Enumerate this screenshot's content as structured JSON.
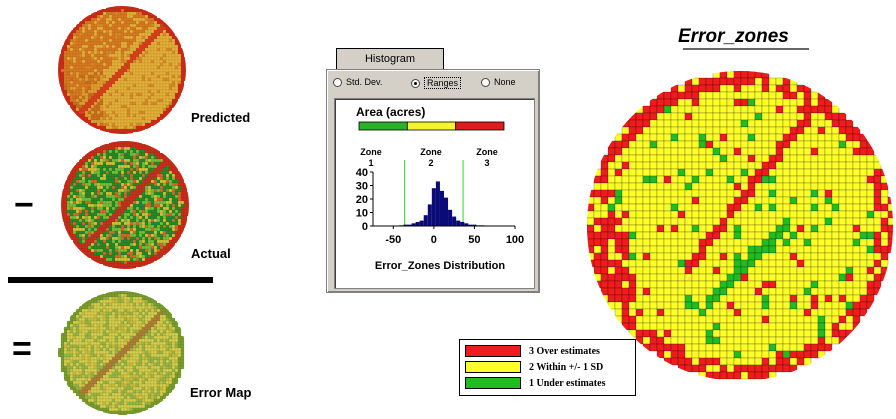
{
  "maps": {
    "predicted_label": "Predicted",
    "actual_label": "Actual",
    "error_map_label": "Error Map",
    "minus_sign": "−",
    "equals_sign": "="
  },
  "histogram": {
    "tab_label": "Histogram",
    "options": [
      "Std. Dev.",
      "Ranges",
      "None"
    ],
    "selected_option": "Ranges",
    "area_title": "Area (acres)",
    "zone_word": "Zone",
    "zone_numbers": [
      "1",
      "2",
      "3"
    ],
    "zone_colors": [
      "#2cb02c",
      "#f5f52a",
      "#e21c1c"
    ],
    "distribution_label": "Error_Zones Distribution",
    "chart_data": {
      "type": "bar",
      "title": "Area (acres)",
      "xlabel": "Error_Zones Distribution",
      "ylabel": "",
      "ylim": [
        0,
        40
      ],
      "xlim": [
        -75,
        100
      ],
      "x_ticks": [
        "-50",
        "0",
        "50",
        "100"
      ],
      "y_ticks": [
        "40",
        "30",
        "20",
        "10",
        "0"
      ],
      "x": [
        -40,
        -35,
        -30,
        -25,
        -20,
        -15,
        -10,
        -5,
        0,
        5,
        10,
        15,
        20,
        25,
        30,
        35,
        40,
        45,
        50,
        55,
        60
      ],
      "values": [
        0.5,
        1,
        1,
        2,
        3,
        4,
        8,
        16,
        28,
        33,
        26,
        21,
        12,
        7,
        4,
        3,
        2,
        1,
        1,
        0.5,
        0.5
      ],
      "thresholds": [
        -36,
        36
      ],
      "bar_color": "#0a0a78",
      "threshold_color": "#2ed82e"
    }
  },
  "error_zones": {
    "title": "Error_zones",
    "legend": [
      {
        "label": "3 Over estimates",
        "color": "#ee1c1c"
      },
      {
        "label": "2 Within +/- 1 SD",
        "color": "#ffff2a"
      },
      {
        "label": "1 Under estimates",
        "color": "#22bb22"
      }
    ]
  }
}
